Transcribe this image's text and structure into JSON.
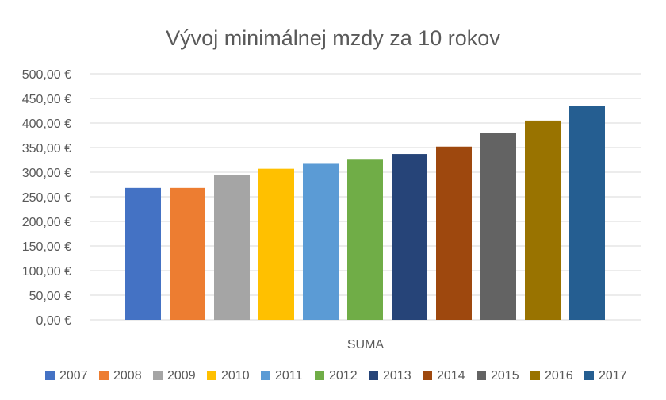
{
  "chart_data": {
    "type": "bar",
    "title": "Vývoj minimálnej mzdy za 10 rokov",
    "categories": [
      "SUMA"
    ],
    "ylim": [
      0,
      500
    ],
    "ytick_step": 50,
    "ytick_labels": [
      "0,00 €",
      "50,00 €",
      "100,00 €",
      "150,00 €",
      "200,00 €",
      "250,00 €",
      "300,00 €",
      "350,00 €",
      "400,00 €",
      "450,00 €",
      "500,00 €"
    ],
    "grid": true,
    "legend": "bottom",
    "series": [
      {
        "name": "2007",
        "values": [
          268
        ],
        "color": "#4472C4"
      },
      {
        "name": "2008",
        "values": [
          268
        ],
        "color": "#ED7D31"
      },
      {
        "name": "2009",
        "values": [
          295
        ],
        "color": "#A5A5A5"
      },
      {
        "name": "2010",
        "values": [
          307
        ],
        "color": "#FFC000"
      },
      {
        "name": "2011",
        "values": [
          317
        ],
        "color": "#5B9BD5"
      },
      {
        "name": "2012",
        "values": [
          327
        ],
        "color": "#70AD47"
      },
      {
        "name": "2013",
        "values": [
          337
        ],
        "color": "#264478"
      },
      {
        "name": "2014",
        "values": [
          352
        ],
        "color": "#9E480E"
      },
      {
        "name": "2015",
        "values": [
          380
        ],
        "color": "#636363"
      },
      {
        "name": "2016",
        "values": [
          405
        ],
        "color": "#997300"
      },
      {
        "name": "2017",
        "values": [
          435
        ],
        "color": "#255E91"
      }
    ]
  }
}
